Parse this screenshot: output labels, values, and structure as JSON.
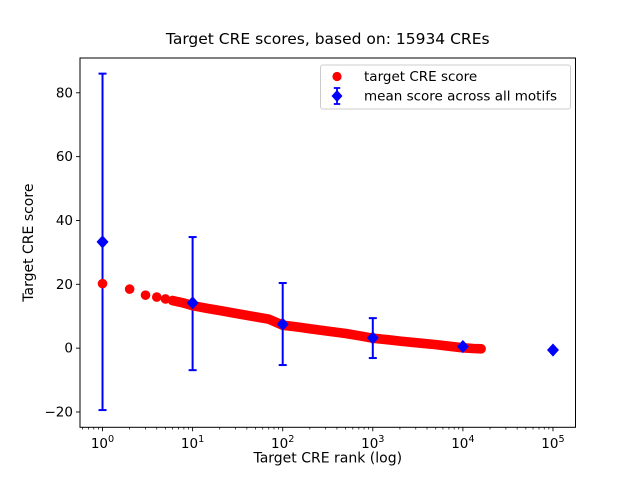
{
  "chart_data": {
    "type": "scatter",
    "title": "Target CRE scores, based on: 15934 CREs",
    "xlabel": "Target CRE rank (log)",
    "ylabel": "Target CRE score",
    "x_scale": "log",
    "xlim_log10": [
      -0.25,
      5.25
    ],
    "ylim": [
      -24.8,
      90.9
    ],
    "x_ticks_exponents": [
      0,
      1,
      2,
      3,
      4,
      5
    ],
    "y_ticks": [
      -20,
      0,
      20,
      40,
      60,
      80
    ],
    "grid": false,
    "colors": {
      "target": "#ff0000",
      "mean": "#0000ff",
      "spine": "#000000",
      "legend_border": "#cccccc"
    },
    "legend": {
      "position": "upper right",
      "entries": [
        {
          "label": "target CRE score",
          "marker": "circle",
          "color": "#ff0000"
        },
        {
          "label": "mean score across all motifs",
          "marker": "diamond-errorbar",
          "color": "#0000ff"
        }
      ]
    },
    "series": [
      {
        "name": "target CRE score",
        "type": "scatter",
        "marker": "circle",
        "color": "#ff0000",
        "n_points": 15934,
        "points": [
          [
            1,
            20.2
          ],
          [
            2,
            18.5
          ],
          [
            3,
            16.6
          ],
          [
            4,
            16.0
          ],
          [
            5,
            15.4
          ],
          [
            6,
            14.9
          ],
          [
            7,
            14.5
          ],
          [
            8,
            14.1
          ],
          [
            9,
            13.7
          ],
          [
            10,
            13.3
          ],
          [
            15,
            12.4
          ],
          [
            20,
            11.8
          ],
          [
            30,
            10.9
          ],
          [
            50,
            9.8
          ],
          [
            70,
            9.1
          ],
          [
            100,
            7.2
          ],
          [
            150,
            6.6
          ],
          [
            200,
            6.1
          ],
          [
            300,
            5.4
          ],
          [
            500,
            4.6
          ],
          [
            700,
            3.9
          ],
          [
            1000,
            3.1
          ],
          [
            1500,
            2.6
          ],
          [
            2000,
            2.2
          ],
          [
            3000,
            1.7
          ],
          [
            5000,
            1.1
          ],
          [
            7000,
            0.6
          ],
          [
            10000,
            0.1
          ],
          [
            13000,
            -0.1
          ],
          [
            15934,
            -0.2
          ]
        ]
      },
      {
        "name": "mean score across all motifs",
        "type": "errorbar",
        "marker": "diamond",
        "color": "#0000ff",
        "x": [
          1,
          10,
          100,
          1000,
          10000,
          100000
        ],
        "y": [
          33.3,
          14.2,
          7.5,
          3.2,
          0.5,
          -0.6
        ],
        "err_high": [
          86.0,
          34.8,
          20.4,
          9.4,
          0.5,
          -0.6
        ],
        "err_low": [
          -19.4,
          -6.9,
          -5.3,
          -3.1,
          0.5,
          -0.6
        ]
      }
    ]
  }
}
